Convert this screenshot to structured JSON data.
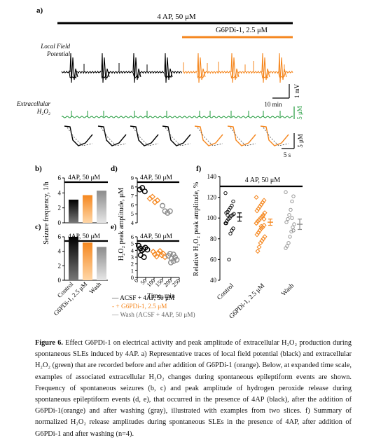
{
  "panels": {
    "a": "a)",
    "b": "b)",
    "c": "c)",
    "d": "d)",
    "e": "e)",
    "f": "f)"
  },
  "panel_a": {
    "bar_4ap": "4 AP, 50 μM",
    "bar_g6pdi": "G6PDi-1, 2.5 μM",
    "lfp_label_1": "Local Field",
    "lfp_label_2": "Potential",
    "h2o2_label_1": "Extracellular",
    "h2o2_label_2": "H₂O₂",
    "scale_1mv": "1 mV",
    "scale_10min": "10 min",
    "scale_5um_green": "5 μM",
    "scale_5um": "5 μM",
    "scale_5s": "5 s"
  },
  "colors": {
    "black": "#000000",
    "orange": "#f5871f",
    "green": "#1e9a3a",
    "gray": "#8c8c8c"
  },
  "chart_data": [
    {
      "panel": "b",
      "type": "bar",
      "ylabel": "Seizure frequency, 1/h",
      "annotation": "4AP, 50 μM",
      "ylim": [
        0,
        6
      ],
      "yticks": [
        0,
        2,
        4,
        6
      ],
      "categories": [
        "Control",
        "G6PDi-1, 2.5 μM",
        "Wash"
      ],
      "values": [
        3.1,
        3.7,
        4.3
      ]
    },
    {
      "panel": "c",
      "type": "bar",
      "annotation": "4AP, 50 μM",
      "ylim": [
        0,
        6
      ],
      "yticks": [
        0,
        2,
        4,
        6
      ],
      "categories": [
        "Control",
        "G6PDi-1, 2.5 μM",
        "Wash"
      ],
      "values": [
        6.0,
        5.2,
        4.6
      ]
    },
    {
      "panel": "d",
      "type": "scatter",
      "annotation": "4AP, 50 μM",
      "ylim": [
        4,
        9
      ],
      "yticks": [
        4,
        5,
        6,
        7,
        8,
        9
      ],
      "series": [
        {
          "x": [
            15,
            30,
            45
          ],
          "y": [
            7.7,
            7.9,
            7.5
          ]
        },
        {
          "x": [
            75,
            90,
            105,
            120
          ],
          "y": [
            6.7,
            6.9,
            6.3,
            6.5
          ]
        },
        {
          "x": [
            150,
            165,
            180,
            195
          ],
          "y": [
            5.9,
            5.3,
            5.1,
            5.3
          ]
        }
      ]
    },
    {
      "panel": "e",
      "type": "scatter",
      "annotation": "4AP, 50 μM",
      "ylabel": "H₂O₂ peak amplitude, μM",
      "xlabel": "Time, min",
      "xlim": [
        0,
        250
      ],
      "ylim": [
        0,
        6
      ],
      "xticks": [
        0,
        50,
        100,
        150,
        200,
        250
      ],
      "yticks": [
        0,
        1,
        2,
        3,
        4,
        5,
        6
      ],
      "series": [
        {
          "x": [
            8,
            18,
            28,
            38,
            48,
            60,
            20,
            40
          ],
          "y": [
            4.7,
            4.3,
            4.0,
            4.2,
            4.4,
            4.1,
            3.3,
            3.0
          ]
        },
        {
          "x": [
            95,
            105,
            115,
            125,
            135,
            145,
            155,
            165
          ],
          "y": [
            3.8,
            3.4,
            3.1,
            3.6,
            3.9,
            3.3,
            3.5,
            3.0
          ]
        },
        {
          "x": [
            185,
            195,
            205,
            215,
            225,
            235,
            200,
            215
          ],
          "y": [
            3.2,
            3.5,
            2.8,
            3.4,
            3.0,
            2.6,
            2.2,
            2.4
          ]
        }
      ]
    },
    {
      "panel": "f",
      "type": "scatter",
      "ylabel": "Relative H₂O₂ peak amplitude, %",
      "annotation": "4 AP, 50 μM",
      "ylim": [
        40,
        140
      ],
      "yticks": [
        40,
        60,
        80,
        100,
        120,
        140
      ],
      "categories": [
        "Control",
        "G6PDi-1, 2.5 μM",
        "Wash"
      ],
      "means": [
        101,
        96,
        94
      ],
      "sems": [
        4,
        3,
        5
      ],
      "points": [
        [
          124,
          116,
          112,
          110,
          108,
          106,
          105,
          104,
          103,
          102,
          100,
          99,
          97,
          95,
          90,
          88,
          85,
          60,
          103,
          95
        ],
        [
          120,
          117,
          115,
          113,
          111,
          109,
          107,
          105,
          103,
          101,
          100,
          98,
          97,
          95,
          93,
          91,
          90,
          88,
          86,
          84,
          82,
          80,
          78,
          76,
          72,
          68,
          95,
          99,
          102,
          92
        ],
        [
          125,
          121,
          116,
          108,
          103,
          99,
          96,
          94,
          91,
          87,
          82,
          76,
          73,
          71,
          88,
          100
        ]
      ]
    }
  ],
  "legend": {
    "item1": "— ACSF + 4AP, 50 μM",
    "item2": "- + G6PDi-1, 2.5 μM",
    "item3": "— Wash (ACSF + 4AP, 50 μM)"
  },
  "caption": {
    "bold": "Figure 6.",
    "text": " Effect G6PDi-1 on electrical activity and peak amplitude of extracellular H₂O₂ production during spontaneous SLEs induced by 4AP. a) Representative traces of local field potential (black) and extracellular H₂O₂ (green) that are recorded before and after addition of G6PDi-1 (orange). Below, at expanded time scale, examples of associated extracellular H₂O₂ changes during spontaneous epileptiform events are shown. Frequency of spontaneous seizures (b, c) and peak amplitude of hydrogen peroxide release during spontaneous epileptiform events (d, e), that occurred in the presence of 4AP (black), after the addition of G6PDi-1(orange) and after washing (gray), illustrated with examples from two slices. f) Summary of normalized H₂O₂ release amplitudes during spontaneous SLEs in the presence of 4AP, after addition of G6PDi-1 and after washing (n=4)."
  }
}
